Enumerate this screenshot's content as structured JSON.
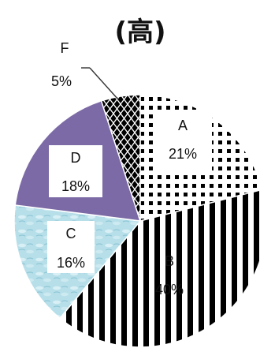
{
  "chart_data": {
    "type": "pie",
    "title": "(高)",
    "slices": [
      {
        "label": "A",
        "value_label": "21%",
        "value": 21,
        "color": "#ffffff",
        "pattern": "dots"
      },
      {
        "label": "B",
        "value_label": "40%",
        "value": 40,
        "color": "#ffffff",
        "pattern": "vertical-stripes"
      },
      {
        "label": "C",
        "value_label": "16%",
        "value": 16,
        "color": "#b9e0ea",
        "pattern": "water"
      },
      {
        "label": "D",
        "value_label": "18%",
        "value": 18,
        "color": "#7b6aa6",
        "pattern": "solid"
      },
      {
        "label": "F",
        "value_label": "5%",
        "value": 5,
        "color": "#111111",
        "pattern": "lattice"
      }
    ],
    "start_angle_deg": 90,
    "direction": "clockwise"
  }
}
